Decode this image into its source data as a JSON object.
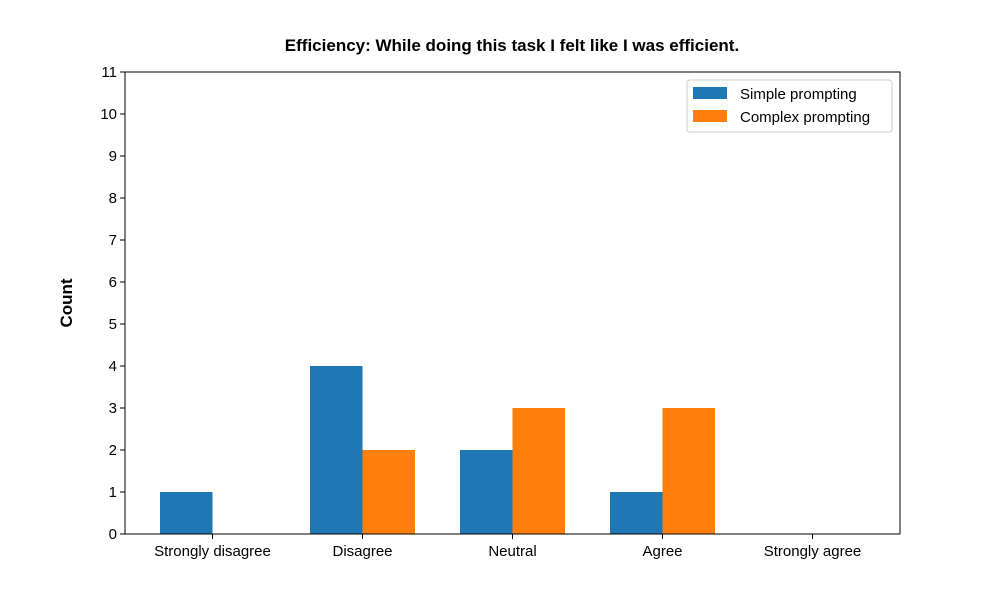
{
  "chart_data": {
    "type": "bar",
    "title": "Efficiency: While doing this task I felt like I was efficient.",
    "xlabel": "",
    "ylabel": "Count",
    "categories": [
      "Strongly disagree",
      "Disagree",
      "Neutral",
      "Agree",
      "Strongly agree"
    ],
    "series": [
      {
        "name": "Simple prompting",
        "values": [
          1,
          4,
          2,
          1,
          0
        ],
        "color": "#1f77b4"
      },
      {
        "name": "Complex prompting",
        "values": [
          0,
          2,
          3,
          3,
          0
        ],
        "color": "#ff7f0e"
      }
    ],
    "ylim": [
      0,
      11
    ],
    "yticks": [
      0,
      1,
      2,
      3,
      4,
      5,
      6,
      7,
      8,
      9,
      10,
      11
    ],
    "grid": false,
    "legend_position": "top-right"
  }
}
